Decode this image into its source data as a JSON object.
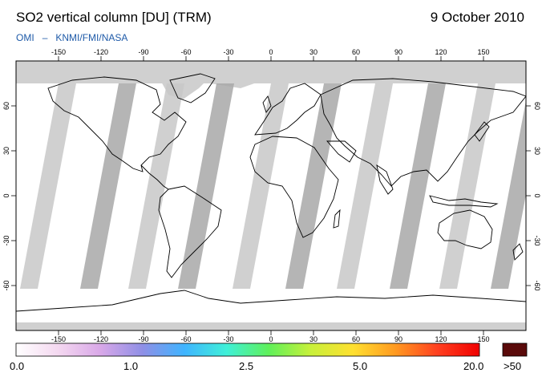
{
  "header": {
    "title": "SO2 vertical column [DU] (TRM)",
    "date": "9 October 2010",
    "credit_instrument": "OMI",
    "credit_separator": "–",
    "credit_agencies": "KNMI/FMI/NASA"
  },
  "map": {
    "lon_ticks": [
      "-150",
      "-120",
      "-90",
      "-60",
      "-30",
      "0",
      "30",
      "60",
      "90",
      "120",
      "150"
    ],
    "lat_ticks": [
      "60",
      "30",
      "0",
      "-30",
      "-60"
    ],
    "no_data_color": "#d0d0d0",
    "swath_colors": [
      "#c8c8c8",
      "#a8a8a8"
    ],
    "coastline_color": "#000000"
  },
  "colorbar": {
    "labels": [
      "0.0",
      "1.0",
      "2.5",
      "5.0",
      "20.0"
    ],
    "overflow_label": ">50",
    "overflow_color": "#5a0a0a",
    "gradient_colors": [
      "#ffffff",
      "#f4d8f0",
      "#d9a8e8",
      "#8f8fe6",
      "#3fb4ff",
      "#3ff0d8",
      "#5ff05a",
      "#c8f03a",
      "#ffe030",
      "#ff9a20",
      "#ff4020",
      "#f00000"
    ]
  }
}
